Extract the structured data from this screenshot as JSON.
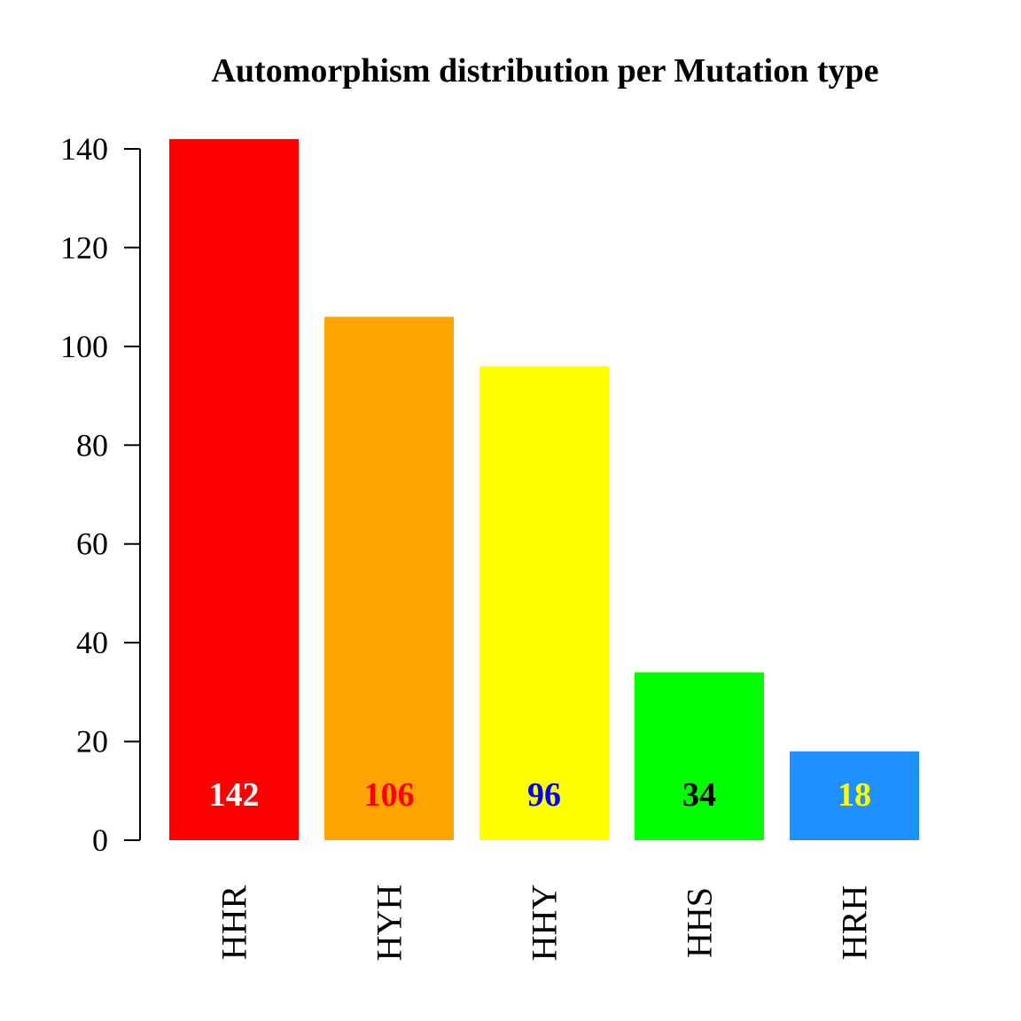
{
  "chart_data": {
    "type": "bar",
    "title": "Automorphism distribution per Mutation type",
    "xlabel": "",
    "ylabel": "",
    "categories": [
      "HHR",
      "HYH",
      "HHY",
      "HHS",
      "HRH"
    ],
    "values": [
      142,
      106,
      96,
      34,
      18
    ],
    "data_labels": [
      "142",
      "106",
      "96",
      "34",
      "18"
    ],
    "bar_colors": [
      "#ff0000",
      "#ffa500",
      "#ffff00",
      "#00ff00",
      "#1e90ff"
    ],
    "label_colors": [
      "#ffffff",
      "#ff0000",
      "#0000ff",
      "#000000",
      "#ffff00"
    ],
    "ylim": [
      0,
      140
    ],
    "yticks": [
      0,
      20,
      40,
      60,
      80,
      100,
      120,
      140
    ],
    "ytick_labels": [
      "0",
      "20",
      "40",
      "60",
      "80",
      "100",
      "120",
      "140"
    ],
    "category_label_orientation": "vertical",
    "grid": false,
    "legend": "none"
  }
}
